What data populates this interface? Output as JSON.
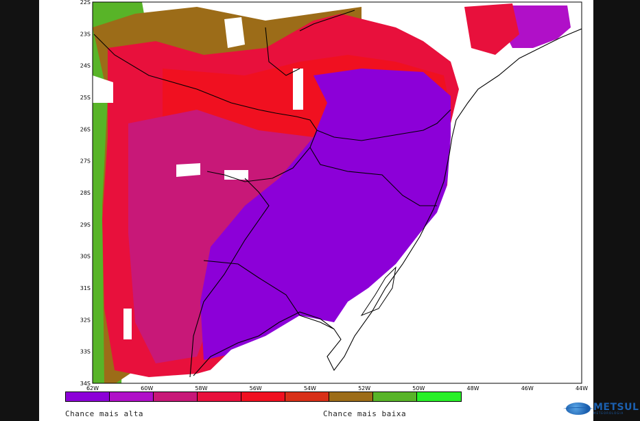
{
  "map": {
    "lat_labels": [
      "22S",
      "23S",
      "24S",
      "25S",
      "26S",
      "27S",
      "28S",
      "29S",
      "30S",
      "31S",
      "32S",
      "33S",
      "34S"
    ],
    "lon_labels": [
      "62W",
      "60W",
      "58W",
      "56W",
      "54W",
      "52W",
      "50W",
      "48W",
      "46W",
      "44W"
    ],
    "lon_range": [
      -62,
      -44
    ],
    "lat_range": [
      -34,
      -22
    ]
  },
  "legend": {
    "colors": [
      "#8c00d8",
      "#b010c8",
      "#c81878",
      "#e8103c",
      "#f01020",
      "#d83018",
      "#9c6c18",
      "#58b428",
      "#28f028"
    ],
    "high_label": "Chance mais alta",
    "low_label": "Chance mais baixa"
  },
  "logo": {
    "name": "METSUL",
    "subtitle": "METEOROLOGIA"
  }
}
